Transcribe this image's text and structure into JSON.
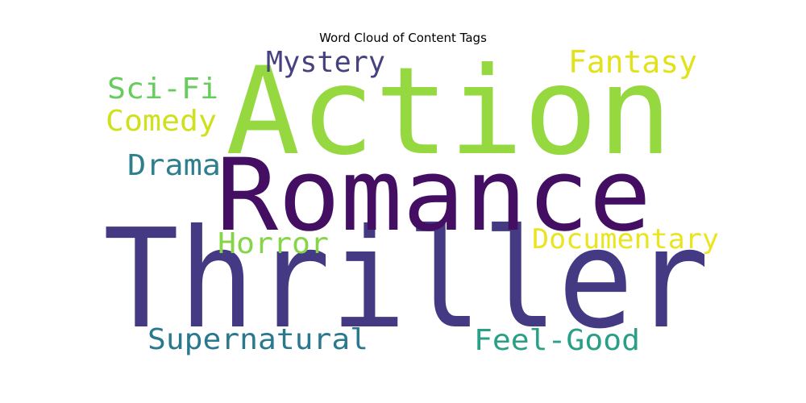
{
  "chart_data": {
    "type": "wordcloud",
    "title": "Word Cloud of Content Tags",
    "words": [
      {
        "text": "Thriller",
        "rank": 1,
        "color": "#443983"
      },
      {
        "text": "Romance",
        "rank": 2,
        "color": "#440f63"
      },
      {
        "text": "Action",
        "rank": 3,
        "color": "#95d840"
      },
      {
        "text": "Documentary",
        "rank": 4,
        "color": "#e9e51e"
      },
      {
        "text": "Feel-Good",
        "rank": 5,
        "color": "#29a085"
      },
      {
        "text": "Supernatural",
        "rank": 6,
        "color": "#2a788e"
      },
      {
        "text": "Fantasy",
        "rank": 7,
        "color": "#e1e21a"
      },
      {
        "text": "Mystery",
        "rank": 8,
        "color": "#47427f"
      },
      {
        "text": "Horror",
        "rank": 9,
        "color": "#86d549"
      },
      {
        "text": "Drama",
        "rank": 10,
        "color": "#2e7f8d"
      },
      {
        "text": "Sci-Fi",
        "rank": 11,
        "color": "#66cc5c"
      },
      {
        "text": "Comedy",
        "rank": 12,
        "color": "#cfe11c"
      }
    ]
  }
}
